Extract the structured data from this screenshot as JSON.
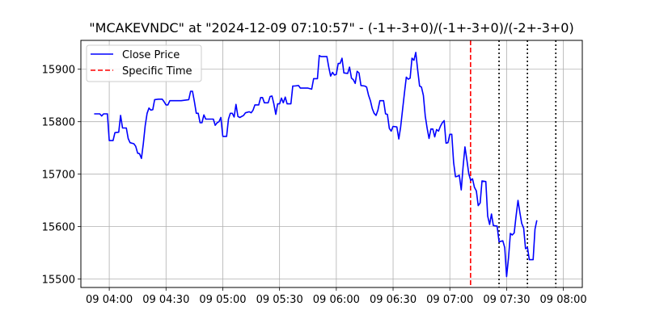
{
  "chart_data": {
    "type": "line",
    "title": "\"MCAKEVNDC\" at \"2024-12-09 07:10:57\" - (-1+-3+0)/(-1+-3+0)/(-2+-3+0)",
    "xlabel": "",
    "ylabel": "",
    "x_ticks": [
      "09 04:00",
      "09 04:30",
      "09 05:00",
      "09 05:30",
      "09 06:00",
      "09 06:30",
      "09 07:00",
      "09 07:30",
      "09 08:00"
    ],
    "y_ticks": [
      15500,
      15600,
      15700,
      15800,
      15900
    ],
    "xlim": [
      "03:45",
      "08:10"
    ],
    "ylim": [
      15484,
      15955
    ],
    "grid": true,
    "legend_position": "top-left",
    "series": [
      {
        "name": "Close Price",
        "color": "#0000ff",
        "points": [
          [
            "03:52",
            15815
          ],
          [
            "03:54",
            15815
          ],
          [
            "03:55",
            15815
          ],
          [
            "03:56",
            15811
          ],
          [
            "03:57",
            15815
          ],
          [
            "03:59",
            15815
          ],
          [
            "04:00",
            15764
          ],
          [
            "04:02",
            15764
          ],
          [
            "04:03",
            15779
          ],
          [
            "04:05",
            15780
          ],
          [
            "04:06",
            15812
          ],
          [
            "04:07",
            15788
          ],
          [
            "04:09",
            15788
          ],
          [
            "04:10",
            15768
          ],
          [
            "04:11",
            15760
          ],
          [
            "04:13",
            15758
          ],
          [
            "04:14",
            15753
          ],
          [
            "04:15",
            15740
          ],
          [
            "04:16",
            15739
          ],
          [
            "04:17",
            15730
          ],
          [
            "04:18",
            15758
          ],
          [
            "04:19",
            15792
          ],
          [
            "04:20",
            15816
          ],
          [
            "04:21",
            15826
          ],
          [
            "04:22",
            15822
          ],
          [
            "04:23",
            15823
          ],
          [
            "04:24",
            15842
          ],
          [
            "04:26",
            15843
          ],
          [
            "04:28",
            15843
          ],
          [
            "04:29",
            15838
          ],
          [
            "04:30",
            15832
          ],
          [
            "04:31",
            15832
          ],
          [
            "04:32",
            15840
          ],
          [
            "04:34",
            15840
          ],
          [
            "04:38",
            15840
          ],
          [
            "04:42",
            15842
          ],
          [
            "04:43",
            15858
          ],
          [
            "04:44",
            15858
          ],
          [
            "04:45",
            15838
          ],
          [
            "04:46",
            15816
          ],
          [
            "04:47",
            15816
          ],
          [
            "04:48",
            15798
          ],
          [
            "04:49",
            15798
          ],
          [
            "04:50",
            15813
          ],
          [
            "04:51",
            15805
          ],
          [
            "04:53",
            15805
          ],
          [
            "04:55",
            15805
          ],
          [
            "04:56",
            15793
          ],
          [
            "04:57",
            15798
          ],
          [
            "04:58",
            15800
          ],
          [
            "04:59",
            15808
          ],
          [
            "05:00",
            15772
          ],
          [
            "05:02",
            15772
          ],
          [
            "05:03",
            15805
          ],
          [
            "05:04",
            15816
          ],
          [
            "05:05",
            15816
          ],
          [
            "05:06",
            15809
          ],
          [
            "05:07",
            15833
          ],
          [
            "05:08",
            15810
          ],
          [
            "05:09",
            15808
          ],
          [
            "05:11",
            15812
          ],
          [
            "05:12",
            15817
          ],
          [
            "05:14",
            15819
          ],
          [
            "05:15",
            15817
          ],
          [
            "05:16",
            15822
          ],
          [
            "05:17",
            15832
          ],
          [
            "05:19",
            15832
          ],
          [
            "05:20",
            15846
          ],
          [
            "05:21",
            15846
          ],
          [
            "05:22",
            15836
          ],
          [
            "05:24",
            15836
          ],
          [
            "05:25",
            15848
          ],
          [
            "05:26",
            15849
          ],
          [
            "05:27",
            15834
          ],
          [
            "05:28",
            15814
          ],
          [
            "05:29",
            15834
          ],
          [
            "05:30",
            15834
          ],
          [
            "05:31",
            15845
          ],
          [
            "05:32",
            15836
          ],
          [
            "05:33",
            15847
          ],
          [
            "05:34",
            15834
          ],
          [
            "05:36",
            15834
          ],
          [
            "05:37",
            15868
          ],
          [
            "05:38",
            15868
          ],
          [
            "05:40",
            15869
          ],
          [
            "05:41",
            15864
          ],
          [
            "05:43",
            15864
          ],
          [
            "05:45",
            15864
          ],
          [
            "05:47",
            15862
          ],
          [
            "05:48",
            15882
          ],
          [
            "05:50",
            15882
          ],
          [
            "05:51",
            15926
          ],
          [
            "05:52",
            15924
          ],
          [
            "05:54",
            15924
          ],
          [
            "05:55",
            15924
          ],
          [
            "05:56",
            15904
          ],
          [
            "05:57",
            15887
          ],
          [
            "05:58",
            15894
          ],
          [
            "05:59",
            15889
          ],
          [
            "06:00",
            15890
          ],
          [
            "06:01",
            15911
          ],
          [
            "06:02",
            15911
          ],
          [
            "06:03",
            15921
          ],
          [
            "06:04",
            15893
          ],
          [
            "06:06",
            15892
          ],
          [
            "06:07",
            15904
          ],
          [
            "06:08",
            15883
          ],
          [
            "06:09",
            15880
          ],
          [
            "06:10",
            15873
          ],
          [
            "06:11",
            15896
          ],
          [
            "06:12",
            15893
          ],
          [
            "06:13",
            15869
          ],
          [
            "06:15",
            15868
          ],
          [
            "06:16",
            15866
          ],
          [
            "06:17",
            15851
          ],
          [
            "06:18",
            15840
          ],
          [
            "06:19",
            15825
          ],
          [
            "06:20",
            15816
          ],
          [
            "06:21",
            15812
          ],
          [
            "06:22",
            15822
          ],
          [
            "06:23",
            15840
          ],
          [
            "06:25",
            15840
          ],
          [
            "06:26",
            15815
          ],
          [
            "06:27",
            15814
          ],
          [
            "06:28",
            15787
          ],
          [
            "06:29",
            15782
          ],
          [
            "06:30",
            15791
          ],
          [
            "06:32",
            15790
          ],
          [
            "06:33",
            15767
          ],
          [
            "06:34",
            15790
          ],
          [
            "06:35",
            15822
          ],
          [
            "06:36",
            15855
          ],
          [
            "06:37",
            15885
          ],
          [
            "06:38",
            15881
          ],
          [
            "06:39",
            15883
          ],
          [
            "06:40",
            15921
          ],
          [
            "06:41",
            15917
          ],
          [
            "06:42",
            15932
          ],
          [
            "06:43",
            15898
          ],
          [
            "06:44",
            15868
          ],
          [
            "06:45",
            15866
          ],
          [
            "06:46",
            15850
          ],
          [
            "06:47",
            15811
          ],
          [
            "06:48",
            15787
          ],
          [
            "06:49",
            15768
          ],
          [
            "06:50",
            15786
          ],
          [
            "06:51",
            15786
          ],
          [
            "06:52",
            15771
          ],
          [
            "06:53",
            15785
          ],
          [
            "06:54",
            15782
          ],
          [
            "06:55",
            15791
          ],
          [
            "06:56",
            15798
          ],
          [
            "06:57",
            15802
          ],
          [
            "06:58",
            15759
          ],
          [
            "06:59",
            15760
          ],
          [
            "07:00",
            15776
          ],
          [
            "07:01",
            15776
          ],
          [
            "07:02",
            15722
          ],
          [
            "07:03",
            15695
          ],
          [
            "07:04",
            15696
          ],
          [
            "07:05",
            15698
          ],
          [
            "07:06",
            15670
          ],
          [
            "07:07",
            15714
          ],
          [
            "07:08",
            15752
          ],
          [
            "07:09",
            15727
          ],
          [
            "07:10",
            15701
          ],
          [
            "07:11",
            15688
          ],
          [
            "07:12",
            15691
          ],
          [
            "07:13",
            15675
          ],
          [
            "07:14",
            15668
          ],
          [
            "07:15",
            15640
          ],
          [
            "07:16",
            15645
          ],
          [
            "07:17",
            15687
          ],
          [
            "07:19",
            15686
          ],
          [
            "07:20",
            15620
          ],
          [
            "07:21",
            15604
          ],
          [
            "07:22",
            15624
          ],
          [
            "07:23",
            15602
          ],
          [
            "07:25",
            15601
          ],
          [
            "07:26",
            15571
          ],
          [
            "07:27",
            15572
          ],
          [
            "07:28",
            15573
          ],
          [
            "07:29",
            15560
          ],
          [
            "07:30",
            15505
          ],
          [
            "07:31",
            15541
          ],
          [
            "07:32",
            15587
          ],
          [
            "07:33",
            15584
          ],
          [
            "07:34",
            15588
          ],
          [
            "07:35",
            15620
          ],
          [
            "07:36",
            15650
          ],
          [
            "07:37",
            15627
          ],
          [
            "07:38",
            15606
          ],
          [
            "07:39",
            15597
          ],
          [
            "07:40",
            15558
          ],
          [
            "07:41",
            15560
          ],
          [
            "07:42",
            15537
          ],
          [
            "07:44",
            15537
          ],
          [
            "07:45",
            15595
          ],
          [
            "07:46",
            15612
          ]
        ]
      },
      {
        "name": "Specific Time",
        "color": "#ff0000",
        "style": "dashed",
        "x": "07:10:57"
      }
    ],
    "markers": [
      {
        "x": "07:26",
        "color": "#000000",
        "style": "dotted"
      },
      {
        "x": "07:41",
        "color": "#000000",
        "style": "dotted"
      },
      {
        "x": "07:56",
        "color": "#000000",
        "style": "dotted"
      }
    ]
  }
}
